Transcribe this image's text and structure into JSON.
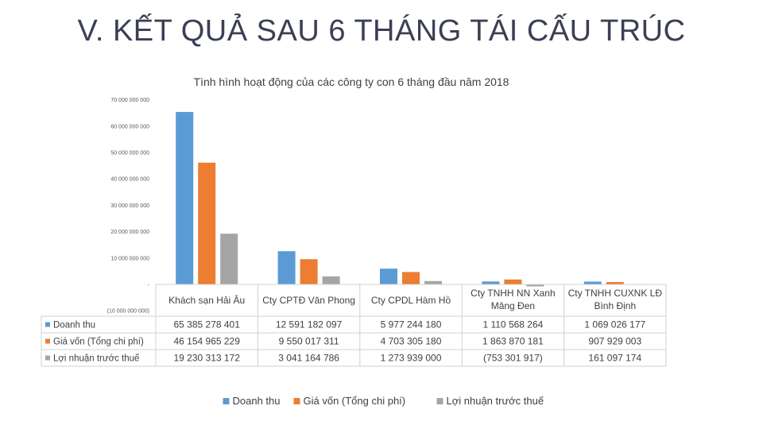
{
  "slide": {
    "title": "V. KẾT QUẢ SAU 6 THÁNG TÁI CẤU TRÚC"
  },
  "chart_data": {
    "type": "bar",
    "title": "Tình hình hoạt động của các công ty con 6 tháng đầu năm 2018",
    "categories": [
      [
        "Khách sạn Hải Âu"
      ],
      [
        "Cty CPTĐ Văn Phong"
      ],
      [
        "Cty CPDL Hàm Hồ"
      ],
      [
        "Cty TNHH NN Xanh",
        "Măng Đen"
      ],
      [
        "Cty TNHH CUXNK LĐ",
        "Bình Định"
      ]
    ],
    "ylim": [
      -10000000000,
      70000000000
    ],
    "yticks": [
      -10000000000,
      0,
      10000000000,
      20000000000,
      30000000000,
      40000000000,
      50000000000,
      60000000000,
      70000000000
    ],
    "ytick_labels": [
      "(10 000 000 000)",
      "-",
      "10 000 000 000",
      "20 000 000 000",
      "30 000 000 000",
      "40 000 000 000",
      "50 000 000 000",
      "60 000 000 000",
      "70 000 000 000"
    ],
    "gridlines": false,
    "legend_position": "bottom",
    "series": [
      {
        "name": "Doanh thu",
        "color": "#5b9bd5",
        "values": [
          65385278401,
          12591182097,
          5977244180,
          1110568264,
          1069026177
        ],
        "labels": [
          "65 385 278 401",
          "12 591 182 097",
          "5 977 244 180",
          "1 110 568 264",
          "1 069 026 177"
        ]
      },
      {
        "name": "Giá vốn (Tổng chi phí)",
        "color": "#ed7d31",
        "values": [
          46154965229,
          9550017311,
          4703305180,
          1863870181,
          907929003
        ],
        "labels": [
          "46 154 965 229",
          "9 550 017 311",
          "4 703 305 180",
          "1 863 870 181",
          "907 929 003"
        ]
      },
      {
        "name": "Lợi nhuận trước thuế",
        "color": "#a5a5a5",
        "values": [
          19230313172,
          3041164786,
          1273939000,
          -753301917,
          161097174
        ],
        "labels": [
          "19 230 313 172",
          "3 041 164 786",
          "1 273 939 000",
          "(753 301 917)",
          "161 097 174"
        ]
      }
    ]
  }
}
